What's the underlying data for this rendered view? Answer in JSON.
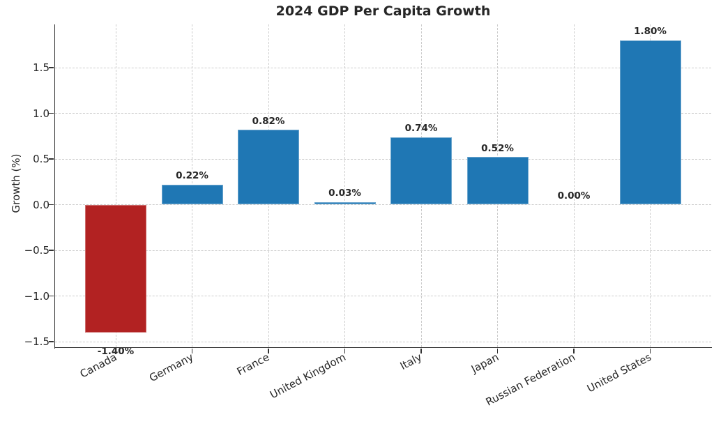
{
  "chart_data": {
    "type": "bar",
    "title": "2024 GDP Per Capita Growth",
    "xlabel": "",
    "ylabel": "Growth (%)",
    "categories": [
      "Canada",
      "Germany",
      "France",
      "United Kingdom",
      "Italy",
      "Japan",
      "Russian Federation",
      "United States"
    ],
    "values": [
      -1.4,
      0.22,
      0.82,
      0.03,
      0.74,
      0.52,
      0.0,
      1.8
    ],
    "bar_labels": [
      "-1.40%",
      "0.22%",
      "0.82%",
      "0.03%",
      "0.74%",
      "0.52%",
      "0.00%",
      "1.80%"
    ],
    "yticks": [
      1.5,
      1.0,
      0.5,
      0.0,
      -0.5,
      -1.0,
      -1.5
    ],
    "ytick_labels": [
      "1.5",
      "1.0",
      "0.5",
      "0.0",
      "−0.5",
      "−1.0",
      "−1.5"
    ],
    "ylim": [
      -1.56,
      1.97
    ],
    "grid": "dashed, both horizontal and vertical",
    "legend": "none",
    "colors": {
      "positive_bar": "#1f77b4",
      "negative_bar": "#b22222",
      "grid": "#cccccc",
      "text": "#262626",
      "spine": "#333333",
      "background": "#ffffff"
    }
  }
}
